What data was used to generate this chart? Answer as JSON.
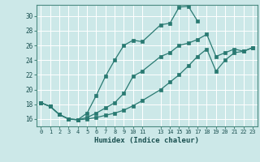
{
  "xlabel": "Humidex (Indice chaleur)",
  "bg_color": "#cce8e8",
  "grid_color": "#ffffff",
  "line_color": "#2a7a72",
  "xlim": [
    -0.5,
    23.5
  ],
  "ylim": [
    15.0,
    31.5
  ],
  "xticks": [
    0,
    1,
    2,
    3,
    4,
    5,
    6,
    7,
    8,
    9,
    10,
    11,
    13,
    14,
    15,
    16,
    17,
    18,
    19,
    20,
    21,
    22,
    23
  ],
  "yticks": [
    16,
    18,
    20,
    22,
    24,
    26,
    28,
    30
  ],
  "line1_x": [
    0,
    1,
    2,
    3,
    4,
    5,
    6,
    7,
    8,
    9,
    10,
    11,
    13,
    14,
    15,
    16,
    17
  ],
  "line1_y": [
    18.2,
    17.7,
    16.6,
    16.0,
    15.9,
    16.8,
    19.2,
    21.8,
    24.0,
    26.0,
    26.7,
    26.5,
    28.8,
    29.0,
    31.2,
    31.3,
    29.3
  ],
  "line2_x": [
    0,
    1,
    2,
    3,
    4,
    5,
    6,
    7,
    8,
    9,
    10,
    11,
    13,
    14,
    15,
    16,
    17,
    18,
    19,
    20,
    21,
    22,
    23
  ],
  "line2_y": [
    18.2,
    17.7,
    16.6,
    16.0,
    15.9,
    16.2,
    16.8,
    17.5,
    18.2,
    19.5,
    21.8,
    22.5,
    24.5,
    25.0,
    26.0,
    26.3,
    26.8,
    27.5,
    24.5,
    25.0,
    25.5,
    25.2,
    25.7
  ],
  "line3_x": [
    0,
    1,
    2,
    3,
    4,
    5,
    6,
    7,
    8,
    9,
    10,
    11,
    13,
    14,
    15,
    16,
    17,
    18,
    19,
    20,
    21,
    22,
    23
  ],
  "line3_y": [
    18.2,
    17.7,
    16.6,
    16.0,
    15.9,
    16.0,
    16.2,
    16.5,
    16.8,
    17.2,
    17.8,
    18.5,
    20.0,
    21.0,
    22.0,
    23.2,
    24.5,
    25.5,
    22.5,
    24.0,
    25.0,
    25.2,
    25.7
  ]
}
